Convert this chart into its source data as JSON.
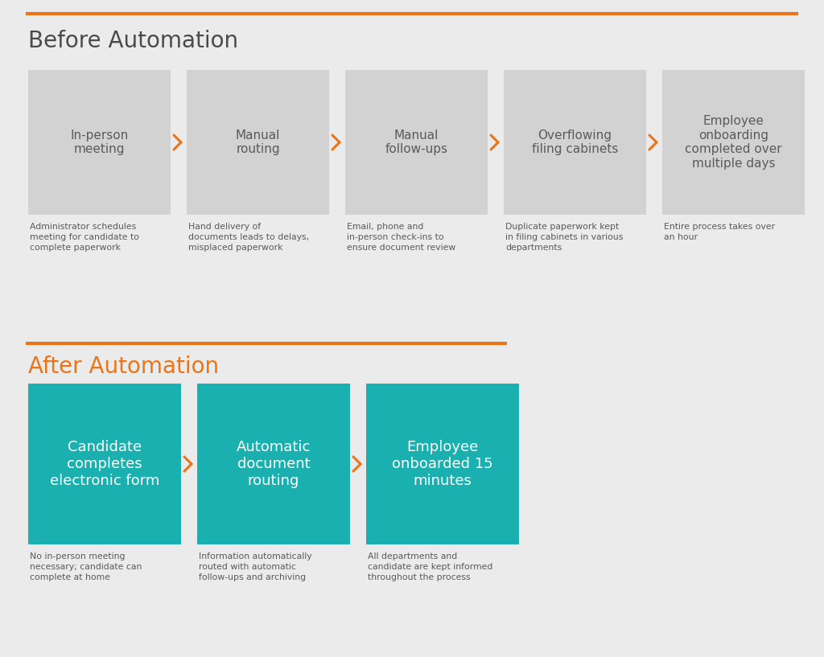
{
  "background_color": "#ebebeb",
  "orange_line_color": "#e8751a",
  "before_title": "Before Automation",
  "before_title_color": "#4a4a4a",
  "after_title": "After Automation",
  "after_title_color": "#e8751a",
  "before_box_color": "#d2d2d2",
  "before_box_text_color": "#5a5a5a",
  "after_box_color": "#1ab0b0",
  "after_box_text_color": "#ffffff",
  "arrow_color": "#e8751a",
  "desc_text_color": "#5a5a5a",
  "before_steps": [
    "In-person\nmeeting",
    "Manual\nrouting",
    "Manual\nfollow-ups",
    "Overflowing\nfiling cabinets",
    "Employee\nonboarding\ncompleted over\nmultiple days"
  ],
  "before_descriptions": [
    "Administrator schedules\nmeeting for candidate to\ncomplete paperwork",
    "Hand delivery of\ndocuments leads to delays,\nmisplaced paperwork",
    "Email, phone and\nin-person check-ins to\nensure document review",
    "Duplicate paperwork kept\nin filing cabinets in various\ndepartments",
    "Entire process takes over\nan hour"
  ],
  "after_steps": [
    "Candidate\ncompletes\nelectronic form",
    "Automatic\ndocument\nrouting",
    "Employee\nonboarded 15\nminutes"
  ],
  "after_descriptions": [
    "No in-person meeting\nnecessary; candidate can\ncomplete at home",
    "Information automatically\nrouted with automatic\nfollow-ups and archiving",
    "All departments and\ncandidate are kept informed\nthroughout the process"
  ]
}
